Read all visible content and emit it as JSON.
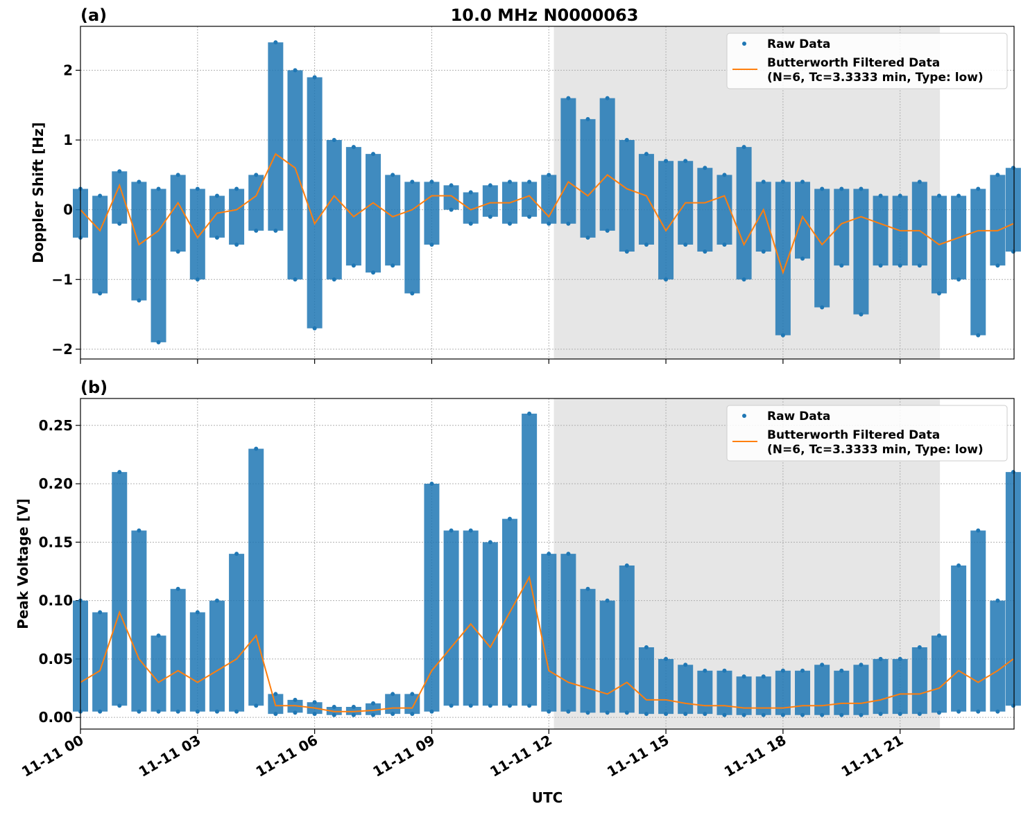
{
  "chart_data": [
    {
      "type": "line",
      "panel_label": "(a)",
      "title": "10.0 MHz N0000063",
      "ylabel": "Doppler Shift [Hz]",
      "xlim": [
        0,
        23.92
      ],
      "ylim": [
        -2.14,
        2.63
      ],
      "xticks": [
        0,
        3,
        6,
        9,
        12,
        15,
        18,
        21
      ],
      "yticks": [
        {
          "value": -2,
          "label": "−2"
        },
        {
          "value": -1,
          "label": "−1"
        },
        0,
        1,
        2
      ],
      "grid": true,
      "shaded_span": [
        12.13,
        22.02
      ],
      "legend": "upper right",
      "series": [
        {
          "name": "Raw Data",
          "style": "scatter",
          "color": "#1f77b4",
          "x": [
            0,
            0,
            0.5,
            0.5,
            1,
            1,
            1.5,
            1.5,
            2,
            2,
            2.5,
            2.5,
            3,
            3,
            3.5,
            3.5,
            4,
            4,
            4.5,
            4.5,
            5,
            5,
            5.5,
            5.5,
            6,
            6,
            6.5,
            6.5,
            7,
            7,
            7.5,
            7.5,
            8,
            8,
            8.5,
            8.5,
            9,
            9,
            9.5,
            9.5,
            10,
            10,
            10.5,
            10.5,
            11,
            11,
            11.5,
            11.5,
            12,
            12,
            12.5,
            12.5,
            13,
            13,
            13.5,
            13.5,
            14,
            14,
            14.5,
            14.5,
            15,
            15,
            15.5,
            15.5,
            16,
            16,
            16.5,
            16.5,
            17,
            17,
            17.5,
            17.5,
            18,
            18,
            18.5,
            18.5,
            19,
            19,
            19.5,
            19.5,
            20,
            20,
            20.5,
            20.5,
            21,
            21,
            21.5,
            21.5,
            22,
            22,
            22.5,
            22.5,
            23,
            23,
            23.5,
            23.5,
            23.9,
            23.9
          ],
          "values": [
            0.3,
            -0.4,
            0.2,
            -1.2,
            0.55,
            -0.2,
            0.4,
            -1.3,
            0.3,
            -1.9,
            0.5,
            -0.6,
            0.3,
            -1.0,
            0.2,
            -0.4,
            0.3,
            -0.5,
            0.5,
            -0.3,
            2.4,
            -0.3,
            2.0,
            -1.0,
            1.9,
            -1.7,
            1.0,
            -1.0,
            0.9,
            -0.8,
            0.8,
            -0.9,
            0.5,
            -0.8,
            0.4,
            -1.2,
            0.4,
            -0.5,
            0.35,
            0,
            0.25,
            -0.2,
            0.35,
            -0.1,
            0.4,
            -0.2,
            0.4,
            -0.1,
            0.5,
            -0.2,
            1.6,
            -0.2,
            1.3,
            -0.4,
            1.6,
            -0.3,
            1.0,
            -0.6,
            0.8,
            -0.5,
            0.7,
            -1.0,
            0.7,
            -0.5,
            0.6,
            -0.6,
            0.5,
            -0.5,
            0.9,
            -1.0,
            0.4,
            -0.6,
            0.4,
            -1.8,
            0.4,
            -0.7,
            0.3,
            -1.4,
            0.3,
            -0.8,
            0.3,
            -1.5,
            0.2,
            -0.8,
            0.2,
            -0.8,
            0.4,
            -0.8,
            0.2,
            -1.2,
            0.2,
            -1.0,
            0.3,
            -1.8,
            0.5,
            -0.8,
            0.6,
            -0.6
          ]
        },
        {
          "name": "Butterworth Filtered Data\n(N=6, Tc=3.3333 min, Type: low)",
          "style": "line",
          "color": "#ff7f0e",
          "x": [
            0,
            0.5,
            1,
            1.5,
            2,
            2.5,
            3,
            3.5,
            4,
            4.5,
            5,
            5.5,
            6,
            6.5,
            7,
            7.5,
            8,
            8.5,
            9,
            9.5,
            10,
            10.5,
            11,
            11.5,
            12,
            12.5,
            13,
            13.5,
            14,
            14.5,
            15,
            15.5,
            16,
            16.5,
            17,
            17.5,
            18,
            18.5,
            19,
            19.5,
            20,
            20.5,
            21,
            21.5,
            22,
            22.5,
            23,
            23.5,
            23.9
          ],
          "values": [
            0,
            -0.3,
            0.35,
            -0.5,
            -0.3,
            0.1,
            -0.4,
            -0.05,
            0,
            0.2,
            0.8,
            0.6,
            -0.2,
            0.2,
            -0.1,
            0.1,
            -0.1,
            0,
            0.2,
            0.2,
            0,
            0.1,
            0.1,
            0.2,
            -0.1,
            0.4,
            0.2,
            0.5,
            0.3,
            0.2,
            -0.3,
            0.1,
            0.1,
            0.2,
            -0.5,
            0,
            -0.9,
            -0.1,
            -0.5,
            -0.2,
            -0.1,
            -0.2,
            -0.3,
            -0.3,
            -0.5,
            -0.4,
            -0.3,
            -0.3,
            -0.2
          ]
        }
      ]
    },
    {
      "type": "line",
      "panel_label": "(b)",
      "ylabel": "Peak Voltage [V]",
      "xlabel": "UTC",
      "xlim": [
        0,
        23.92
      ],
      "ylim": [
        -0.01,
        0.273
      ],
      "xticks": [
        {
          "value": 0,
          "label": "11-11 00"
        },
        {
          "value": 3,
          "label": "11-11 03"
        },
        {
          "value": 6,
          "label": "11-11 06"
        },
        {
          "value": 9,
          "label": "11-11 09"
        },
        {
          "value": 12,
          "label": "11-11 12"
        },
        {
          "value": 15,
          "label": "11-11 15"
        },
        {
          "value": 18,
          "label": "11-11 18"
        },
        {
          "value": 21,
          "label": "11-11 21"
        }
      ],
      "yticks": [
        {
          "value": 0,
          "label": "0.00"
        },
        0.05,
        {
          "value": 0.1,
          "label": "0.10"
        },
        0.15,
        {
          "value": 0.2,
          "label": "0.20"
        },
        0.25
      ],
      "grid": true,
      "shaded_span": [
        12.13,
        22.02
      ],
      "legend": "upper right",
      "series": [
        {
          "name": "Raw Data",
          "style": "scatter",
          "color": "#1f77b4",
          "x": [
            0,
            0,
            0.5,
            0.5,
            1,
            1,
            1.5,
            1.5,
            2,
            2,
            2.5,
            2.5,
            3,
            3,
            3.5,
            3.5,
            4,
            4,
            4.5,
            4.5,
            5,
            5,
            5.5,
            5.5,
            6,
            6,
            6.5,
            6.5,
            7,
            7,
            7.5,
            7.5,
            8,
            8,
            8.5,
            8.5,
            9,
            9,
            9.5,
            9.5,
            10,
            10,
            10.5,
            10.5,
            11,
            11,
            11.5,
            11.5,
            12,
            12,
            12.5,
            12.5,
            13,
            13,
            13.5,
            13.5,
            14,
            14,
            14.5,
            14.5,
            15,
            15,
            15.5,
            15.5,
            16,
            16,
            16.5,
            16.5,
            17,
            17,
            17.5,
            17.5,
            18,
            18,
            18.5,
            18.5,
            19,
            19,
            19.5,
            19.5,
            20,
            20,
            20.5,
            20.5,
            21,
            21,
            21.5,
            21.5,
            22,
            22,
            22.5,
            22.5,
            23,
            23,
            23.5,
            23.5,
            23.9,
            23.9
          ],
          "values": [
            0.1,
            0.005,
            0.09,
            0.005,
            0.21,
            0.01,
            0.16,
            0.005,
            0.07,
            0.005,
            0.11,
            0.005,
            0.09,
            0.005,
            0.1,
            0.005,
            0.14,
            0.005,
            0.23,
            0.01,
            0.02,
            0.003,
            0.015,
            0.004,
            0.013,
            0.003,
            0.009,
            0.002,
            0.009,
            0.002,
            0.012,
            0.002,
            0.02,
            0.003,
            0.02,
            0.003,
            0.2,
            0.005,
            0.16,
            0.01,
            0.16,
            0.01,
            0.15,
            0.01,
            0.17,
            0.01,
            0.26,
            0.01,
            0.14,
            0.005,
            0.14,
            0.005,
            0.11,
            0.004,
            0.1,
            0.004,
            0.13,
            0.004,
            0.06,
            0.003,
            0.05,
            0.003,
            0.045,
            0.003,
            0.04,
            0.003,
            0.04,
            0.002,
            0.035,
            0.002,
            0.035,
            0.002,
            0.04,
            0.002,
            0.04,
            0.002,
            0.045,
            0.002,
            0.04,
            0.002,
            0.045,
            0.002,
            0.05,
            0.003,
            0.05,
            0.003,
            0.06,
            0.003,
            0.07,
            0.004,
            0.13,
            0.005,
            0.16,
            0.005,
            0.1,
            0.005,
            0.21,
            0.01
          ]
        },
        {
          "name": "Butterworth Filtered Data\n(N=6, Tc=3.3333 min, Type: low)",
          "style": "line",
          "color": "#ff7f0e",
          "x": [
            0,
            0.5,
            1,
            1.5,
            2,
            2.5,
            3,
            3.5,
            4,
            4.5,
            5,
            5.5,
            6,
            6.5,
            7,
            7.5,
            8,
            8.5,
            9,
            9.5,
            10,
            10.5,
            11,
            11.5,
            12,
            12.5,
            13,
            13.5,
            14,
            14.5,
            15,
            15.5,
            16,
            16.5,
            17,
            17.5,
            18,
            18.5,
            19,
            19.5,
            20,
            20.5,
            21,
            21.5,
            22,
            22.5,
            23,
            23.5,
            23.9
          ],
          "values": [
            0.03,
            0.04,
            0.09,
            0.05,
            0.03,
            0.04,
            0.03,
            0.04,
            0.05,
            0.07,
            0.01,
            0.01,
            0.008,
            0.005,
            0.005,
            0.006,
            0.008,
            0.008,
            0.04,
            0.06,
            0.08,
            0.06,
            0.09,
            0.12,
            0.04,
            0.03,
            0.025,
            0.02,
            0.03,
            0.015,
            0.015,
            0.012,
            0.01,
            0.01,
            0.008,
            0.008,
            0.008,
            0.01,
            0.01,
            0.012,
            0.012,
            0.015,
            0.02,
            0.02,
            0.025,
            0.04,
            0.03,
            0.04,
            0.05
          ]
        }
      ]
    }
  ]
}
